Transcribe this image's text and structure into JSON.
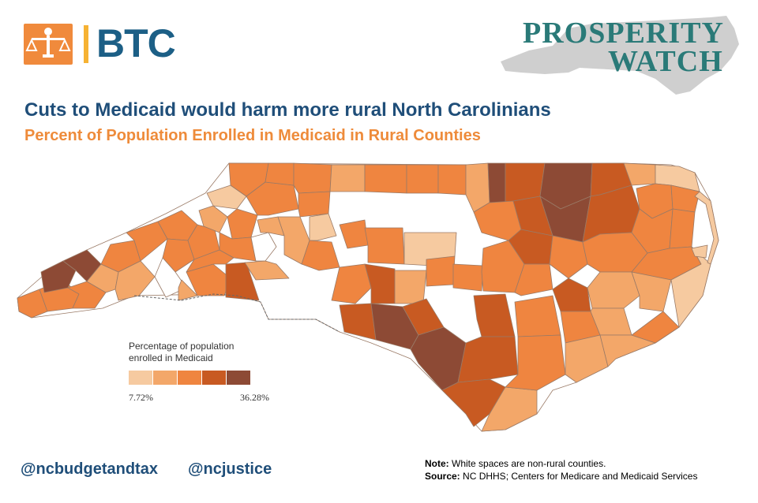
{
  "header": {
    "btc_logo": {
      "text": "BTC",
      "icon": "scales-of-justice-figure-icon",
      "color": "#1c5f86",
      "accent": "#f08a3c"
    },
    "prosperity_logo": {
      "line1": "PROSPERITY",
      "line2": "WATCH",
      "color": "#2a7a78"
    }
  },
  "title": "Cuts to Medicaid would harm more rural North Carolinians",
  "subtitle": "Percent of Population Enrolled in Medicaid in Rural Counties",
  "legend": {
    "title_line1": "Percentage of population",
    "title_line2": "enrolled in Medicaid",
    "min_label": "7.72%",
    "max_label": "36.28%",
    "colors": [
      "#f6caa0",
      "#f3a769",
      "#ef8540",
      "#c85a22",
      "#8d4a35"
    ]
  },
  "footer": {
    "handle1": "@ncbudgetandtax",
    "handle2": "@ncjustice",
    "note_label": "Note:",
    "note_text": " White spaces are non-rural counties.",
    "source_label": "Source:",
    "source_text": " NC DHHS; Centers for Medicare and Medicaid Services"
  },
  "map_colors": {
    "c1": "#f6caa0",
    "c2": "#f3a769",
    "c3": "#ef8540",
    "c4": "#c85a22",
    "c5": "#8d4a35",
    "non_rural": "#ffffff",
    "border": "#9a7a66"
  }
}
